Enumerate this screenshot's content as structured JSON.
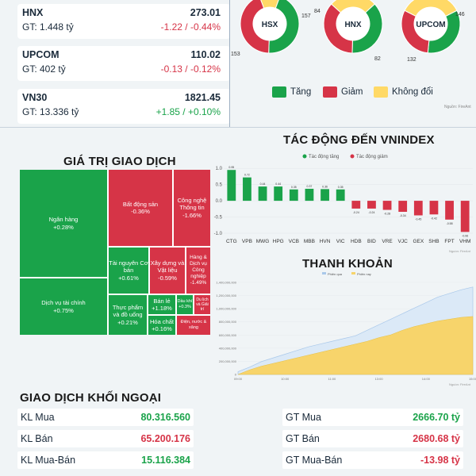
{
  "indices": [
    {
      "name": "HNX",
      "gt": "GT: 1.448 tỷ",
      "value": "273.01",
      "change": "-1.22 / -0.44%",
      "dir": "down"
    },
    {
      "name": "UPCOM",
      "gt": "GT: 402 tỷ",
      "value": "110.02",
      "change": "-0.13 / -0.12%",
      "dir": "down"
    },
    {
      "name": "VN30",
      "gt": "GT: 13.336 tỷ",
      "value": "1821.45",
      "change": "+1.85 / +0.10%",
      "dir": "up"
    }
  ],
  "donuts": [
    {
      "label": "HSX",
      "up": "157",
      "down": "153",
      "flat": "",
      "up_n": 157,
      "down_n": 153,
      "flat_n": 40
    },
    {
      "label": "HNX",
      "up": "84",
      "down": "82",
      "flat": "",
      "up_n": 84,
      "down_n": 82,
      "flat_n": 60
    },
    {
      "label": "UPCOM",
      "up": "146",
      "down": "132",
      "flat": "",
      "up_n": 146,
      "down_n": 132,
      "flat_n": 150
    }
  ],
  "breadth_legend": {
    "up": "Tăng",
    "down": "Giảm",
    "flat": "Không đổi"
  },
  "source": "Nguồn: FireAnt",
  "colors": {
    "green": "#1aa34a",
    "red": "#d63447",
    "yellow": "#ffd966"
  },
  "impact": {
    "title": "TÁC ĐỘNG ĐẾN VNINDEX",
    "legend_up": "Tác động tăng",
    "legend_down": "Tác động giảm",
    "chart_data": {
      "type": "bar",
      "categories": [
        "CTG",
        "VPB",
        "MWG",
        "HPG",
        "VCB",
        "MBB",
        "HVN",
        "VIC",
        "HDB",
        "BID",
        "VRE",
        "VJC",
        "GEX",
        "SHB",
        "FPT",
        "VHM"
      ],
      "values": [
        0.95,
        0.72,
        0.44,
        0.44,
        0.35,
        0.37,
        0.36,
        0.35,
        -0.24,
        -0.24,
        -0.28,
        -0.34,
        -0.45,
        -0.42,
        -0.58,
        -0.96
      ],
      "value_labels": [
        "0.95",
        "0.72",
        "0.44",
        "0.44",
        "0.35",
        "0.37",
        "0.36",
        "0.35",
        "-0.24",
        "-0.24",
        "-0.28",
        "-0.34",
        "-0.45",
        "-0.42",
        "-0.58",
        "-0.96"
      ],
      "yticks": [
        "1.0",
        "0.5",
        "0.0",
        "-0.5",
        "-1.0"
      ],
      "ylim": [
        -1.0,
        1.2
      ]
    }
  },
  "trading_value": {
    "title": "GIÁ TRỊ GIAO DỊCH",
    "cells": [
      {
        "name": "Ngân hàng",
        "chg": "+0.28%",
        "c": "g"
      },
      {
        "name": "Dịch vụ tài chính",
        "chg": "+0.75%",
        "c": "g"
      },
      {
        "name": "Bất động sản",
        "chg": "-0.36%",
        "c": "r"
      },
      {
        "name": "Công nghệ Thông tin",
        "chg": "-1.66%",
        "c": "r"
      },
      {
        "name": "Tài nguyên Cơ bản",
        "chg": "+0.61%",
        "c": "g"
      },
      {
        "name": "Xây dựng và Vật liệu",
        "chg": "-0.59%",
        "c": "r"
      },
      {
        "name": "Hàng & Dịch vụ Công nghiệp",
        "chg": "-1.49%",
        "c": "r"
      },
      {
        "name": "Thực phẩm và đồ uống",
        "chg": "+0.21%",
        "c": "g"
      },
      {
        "name": "Bán lẻ",
        "chg": "+1.18%",
        "c": "g"
      },
      {
        "name": "Dầu khí",
        "chg": "+0.3%",
        "c": "g"
      },
      {
        "name": "Du lịch và Giải trí",
        "chg": "",
        "c": "r"
      },
      {
        "name": "Hóa chất",
        "chg": "+0.16%",
        "c": "g"
      },
      {
        "name": "Điện, nước & xăng",
        "chg": "",
        "c": "r"
      }
    ]
  },
  "liquidity": {
    "title": "THANH KHOẢN",
    "legend_prev": "Phiên qua",
    "legend_today": "Phiên nay",
    "yticks": [
      "1,400,000,000",
      "1,200,000,000",
      "1,000,000,000",
      "800,000,000",
      "600,000,000",
      "400,000,000",
      "200,000,000",
      "0"
    ],
    "xticks": [
      "09:00",
      "10:00",
      "11:00",
      "13:00",
      "14:00",
      "15:00"
    ]
  },
  "foreign": {
    "title": "GIAO DỊCH KHỐI NGOẠI",
    "rows": [
      {
        "label": "KL Mua",
        "value": "80.316.560",
        "g_label": "GT Mua",
        "g_value": "2666.70 tỷ",
        "g_dir": "up"
      },
      {
        "label": "KL Bán",
        "value": "65.200.176",
        "g_label": "GT Bán",
        "g_value": "2680.68 tỷ",
        "g_dir": "down"
      },
      {
        "label": "KL Mua-Bán",
        "value": "15.116.384",
        "g_label": "GT Mua-Bán",
        "g_value": "-13.98 tỷ",
        "g_dir": "down"
      }
    ]
  }
}
